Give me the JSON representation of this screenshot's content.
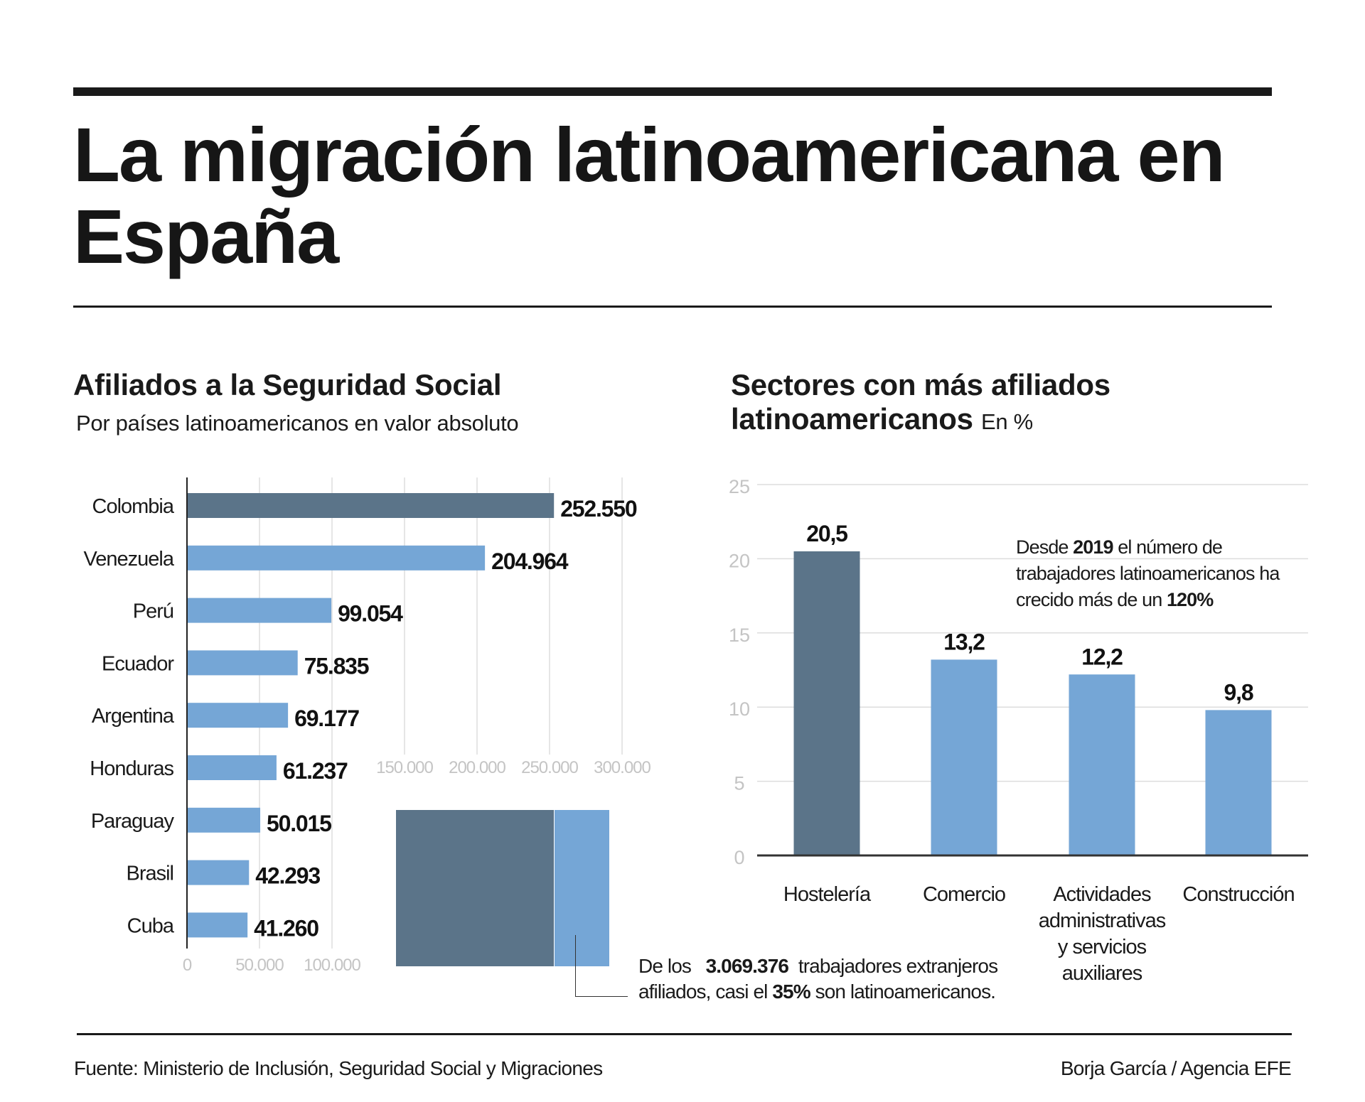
{
  "title": "La migración latinoamericana en España",
  "colors": {
    "highlight": "#5b7489",
    "bar": "#75a6d6",
    "grid": "#dddddd",
    "tick": "#c4c4c4"
  },
  "chart_data": [
    {
      "type": "bar",
      "orientation": "horizontal",
      "title": "Afiliados a la Seguridad Social",
      "subtitle": "Por países latinoamericanos en valor absoluto",
      "categories": [
        "Colombia",
        "Venezuela",
        "Perú",
        "Ecuador",
        "Argentina",
        "Honduras",
        "Paraguay",
        "Brasil",
        "Cuba"
      ],
      "values": [
        252550,
        204964,
        99054,
        75835,
        69177,
        61237,
        50015,
        42293,
        41260
      ],
      "value_labels": [
        "252.550",
        "204.964",
        "99.054",
        "75.835",
        "69.177",
        "61.237",
        "50.015",
        "42.293",
        "41.260"
      ],
      "xlim": [
        0,
        300000
      ],
      "x_ticks": [
        "0",
        "50.000",
        "100.000",
        "150.000",
        "200.000",
        "250.000",
        "300.000"
      ],
      "grid": true,
      "highlight": "Colombia"
    },
    {
      "type": "bar",
      "title": "Sectores con más afiliados latinoamericanos",
      "unit": "En %",
      "categories": [
        "Hostelería",
        "Comercio",
        "Actividades administrativas y servicios auxiliares",
        "Construcción"
      ],
      "category_lines": [
        [
          "Hostelería"
        ],
        [
          "Comercio"
        ],
        [
          "Actividades",
          "administrativas",
          "y servicios",
          "auxiliares"
        ],
        [
          "Construcción"
        ]
      ],
      "values": [
        20.5,
        13.2,
        12.2,
        9.8
      ],
      "value_labels": [
        "20,5",
        "13,2",
        "12,2",
        "9,8"
      ],
      "ylim": [
        0,
        25
      ],
      "y_ticks": [
        "0",
        "5",
        "10",
        "15",
        "20",
        "25"
      ],
      "grid": true,
      "highlight": "Hostelería"
    }
  ],
  "share_note": {
    "pre": "De los",
    "total": "3.069.376",
    "mid": "trabajadores extranjeros",
    "line2_pre": "afiliados, casi el",
    "pct": "35%",
    "line2_post": "son latinoamericanos.",
    "share_percent": 35
  },
  "growth_note": {
    "l1_pre": "Desde",
    "year": "2019",
    "l1_post": "el número de",
    "l2": "trabajadores latinoamericanos ha",
    "l3_pre": "crecido más de un",
    "pct": "120%"
  },
  "footer": {
    "source": "Fuente: Ministerio de Inclusión, Seguridad Social y Migraciones",
    "credit": "Borja García / Agencia EFE"
  }
}
